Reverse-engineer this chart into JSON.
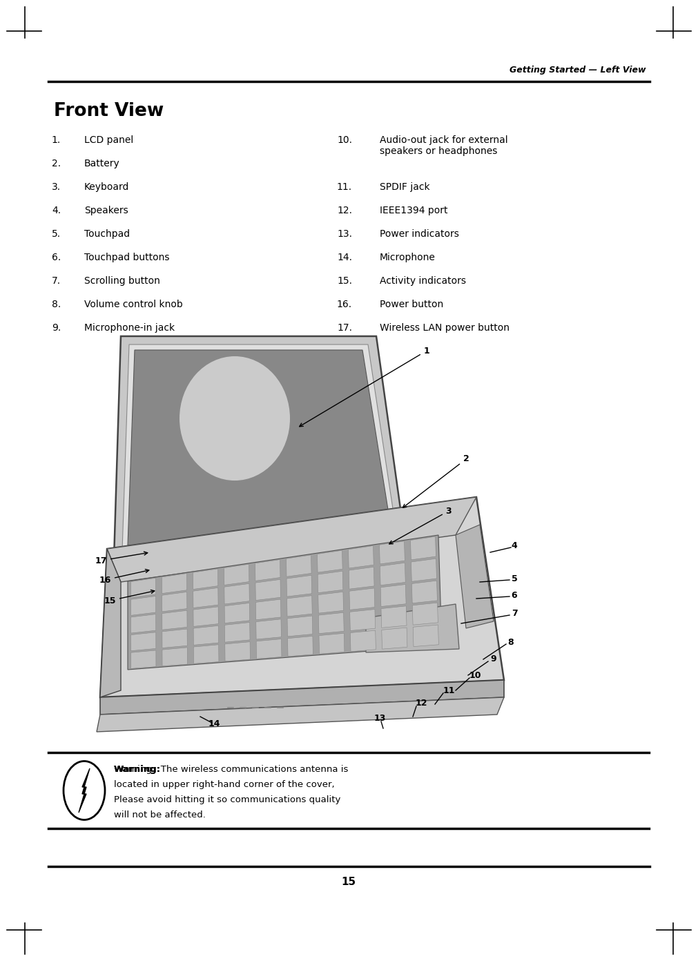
{
  "page_title": "Getting Started — Left View",
  "section_title": "Front View",
  "left_items_nums": [
    "1.",
    "2.",
    "3.",
    "4.",
    "5.",
    "6.",
    "7.",
    "8.",
    "9."
  ],
  "left_items_text": [
    "LCD panel",
    "Battery",
    "Keyboard",
    "Speakers",
    "Touchpad",
    "Touchpad buttons",
    "Scrolling button",
    "Volume control knob",
    "Microphone-in jack"
  ],
  "right_items_nums": [
    "10.",
    "11.",
    "12.",
    "13.",
    "14.",
    "15.",
    "16.",
    "17."
  ],
  "right_items_text": [
    "Audio-out jack for external\nspeakers or headphones",
    "SPDIF jack",
    "IEEE1394 port",
    "Power indicators",
    "Microphone",
    "Activity indicators",
    "Power button",
    "Wireless LAN power button"
  ],
  "warning_bold": "Warning:",
  "warning_rest": "  The wireless communications antenna is\nlocated in upper right-hand corner of the cover,\nPlease avoid hitting it so communications quality\nwill not be affected.",
  "page_number": "15",
  "bg_color": "#ffffff",
  "text_color": "#000000"
}
